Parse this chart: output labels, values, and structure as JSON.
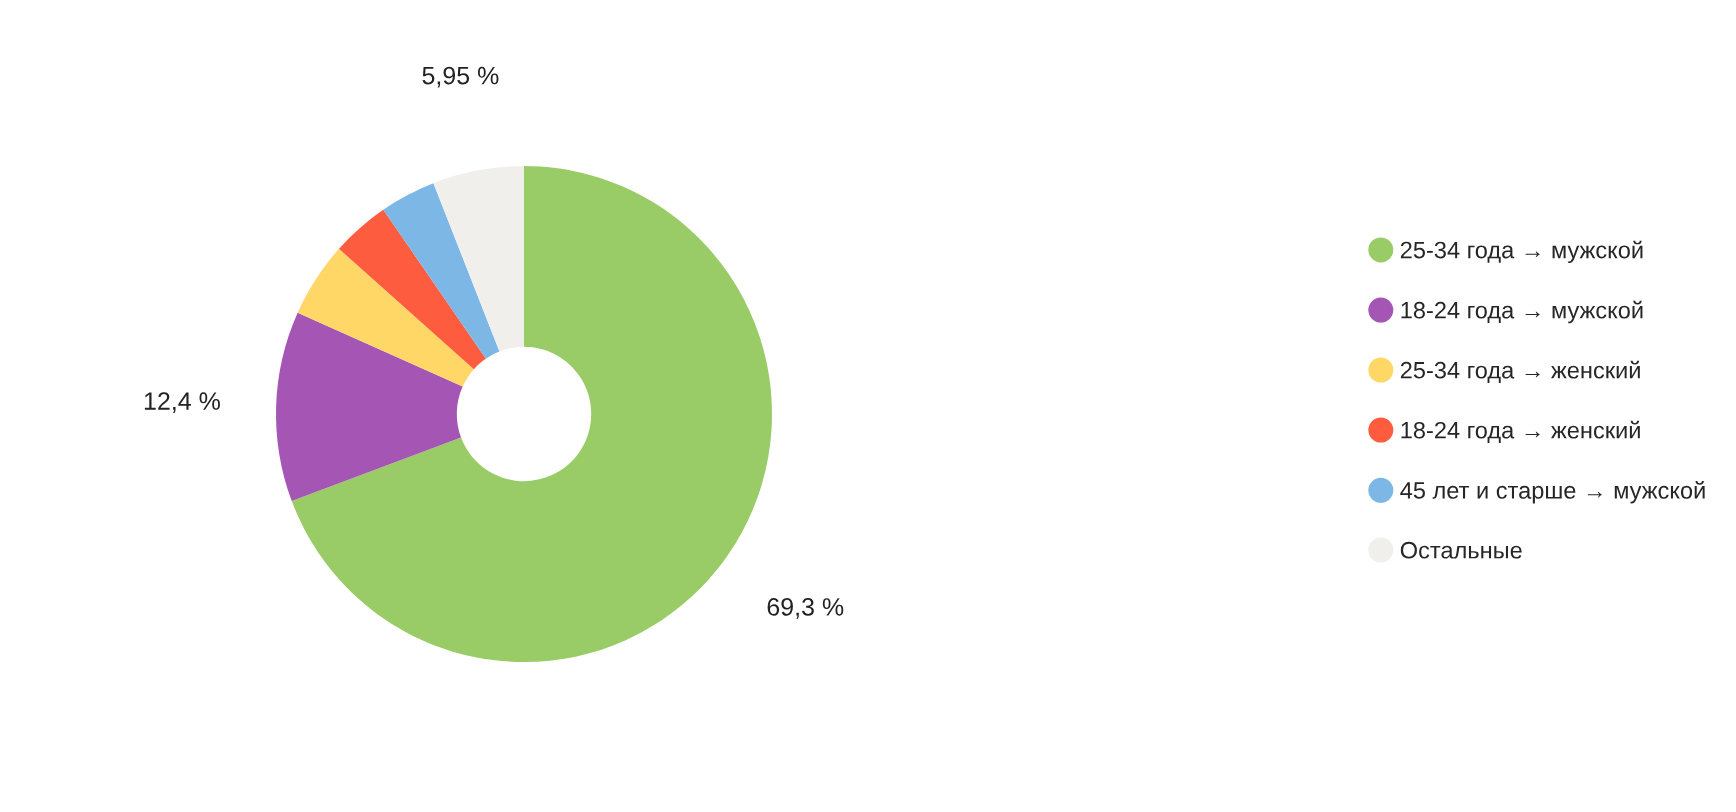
{
  "chart_data": {
    "type": "donut",
    "categories": [
      "25-34 года → мужской",
      "18-24 года → мужской",
      "25-34 года → женский",
      "18-24 года → женский",
      "45 лет и старше → мужской",
      "Остальные"
    ],
    "values": [
      69.3,
      12.4,
      4.9,
      3.8,
      3.65,
      5.95
    ],
    "colors": [
      "#99cc66",
      "#a556b5",
      "#fed766",
      "#fe5c3e",
      "#7db7e5",
      "#f0efec"
    ],
    "value_labels": [
      "69,3 %",
      "12,4 %",
      null,
      null,
      null,
      "5,95 %"
    ],
    "legend": "right"
  }
}
